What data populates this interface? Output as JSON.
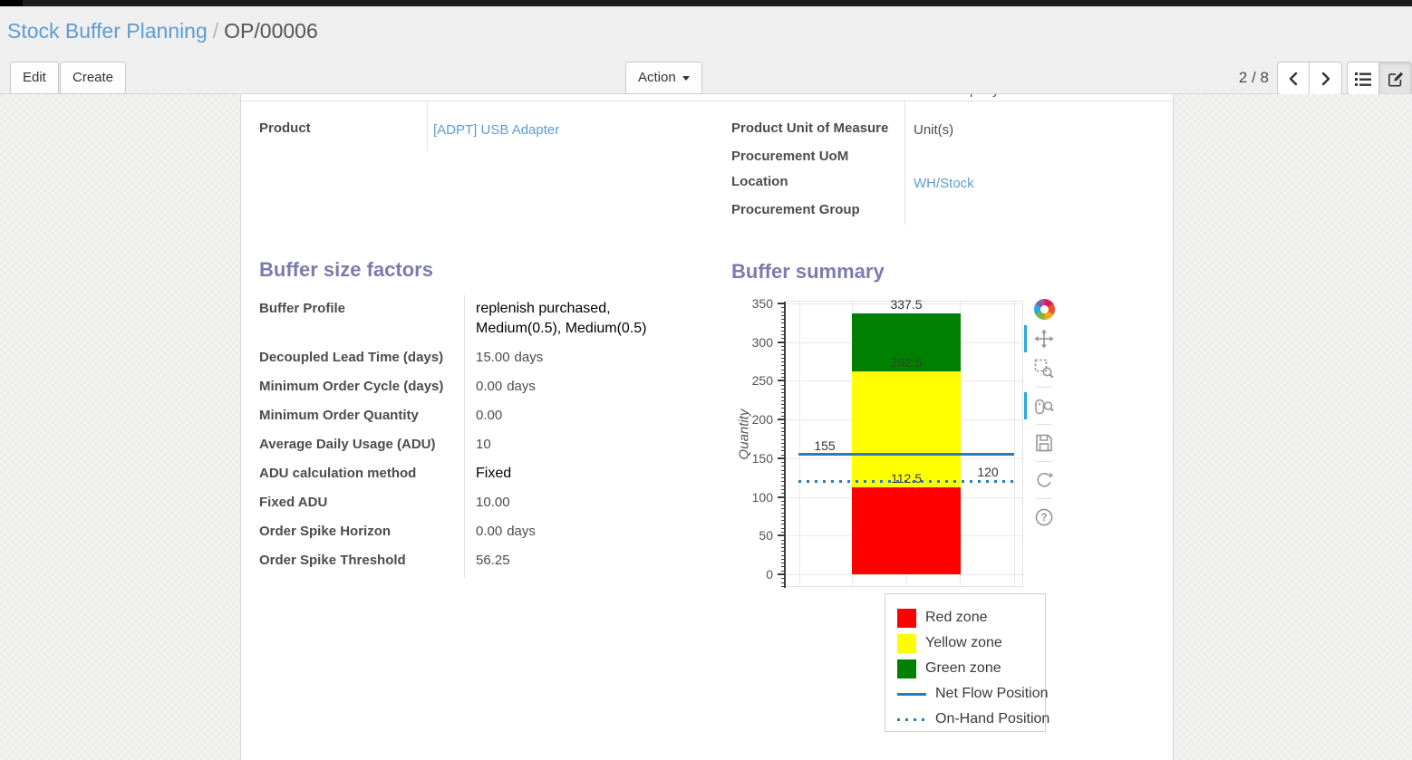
{
  "breadcrumb": {
    "parent": "Stock Buffer Planning",
    "separator": "/",
    "current": "OP/00006"
  },
  "toolbar": {
    "edit_label": "Edit",
    "create_label": "Create",
    "action_label": "Action",
    "pager": "2 / 8"
  },
  "form": {
    "clipped_previous_row_value": "YourCompany",
    "top_left_fields": [
      {
        "label": "Product",
        "value": "[ADPT] USB Adapter"
      }
    ],
    "top_right_fields": [
      {
        "label": "Product Unit of Measure",
        "value": "Unit(s)"
      },
      {
        "label": "Procurement UoM",
        "value": ""
      },
      {
        "label": "Location",
        "value": "WH/Stock"
      },
      {
        "label": "Procurement Group",
        "value": ""
      }
    ],
    "sections": {
      "factors": {
        "title": "Buffer size factors",
        "fields": [
          {
            "label": "Buffer Profile",
            "value": "replenish purchased, Medium(0.5), Medium(0.5)"
          },
          {
            "label": "Decoupled Lead Time (days)",
            "value": "15.00",
            "suffix": "days"
          },
          {
            "label": "Minimum Order Cycle (days)",
            "value": "0.00",
            "suffix": "days"
          },
          {
            "label": "Minimum Order Quantity",
            "value": "0.00"
          },
          {
            "label": "Average Daily Usage (ADU)",
            "value": "10"
          },
          {
            "label": "ADU calculation method",
            "value": "Fixed"
          },
          {
            "label": "Fixed ADU",
            "value": "10.00"
          },
          {
            "label": "Order Spike Horizon",
            "value": "0.00",
            "suffix": "days"
          },
          {
            "label": "Order Spike Threshold",
            "value": "56.25"
          }
        ]
      },
      "summary": {
        "title": "Buffer summary"
      }
    }
  },
  "chart_data": {
    "type": "bar",
    "title": "Buffer summary",
    "ylabel": "Quantity",
    "ylim": [
      0,
      350
    ],
    "yticks": [
      0,
      50,
      100,
      150,
      200,
      250,
      300,
      350
    ],
    "grid": true,
    "zones": [
      {
        "name": "Red zone",
        "from": 0,
        "to": 112.5,
        "color": "#ff0000"
      },
      {
        "name": "Yellow zone",
        "from": 112.5,
        "to": 262.5,
        "color": "#ffff00"
      },
      {
        "name": "Green zone",
        "from": 262.5,
        "to": 337.5,
        "color": "#008000"
      }
    ],
    "lines": [
      {
        "name": "Net Flow Position",
        "value": 155,
        "style": "solid",
        "color": "#2b7bb8"
      },
      {
        "name": "On-Hand Position",
        "value": 120,
        "style": "dotted",
        "color": "#2b7bb8"
      }
    ],
    "annotations": [
      {
        "text": "337.5",
        "value": 337.5,
        "pos": "bar",
        "color": "#333333"
      },
      {
        "text": "262.5",
        "value": 262.5,
        "pos": "bar",
        "color": "rgba(55,55,55,0.7)"
      },
      {
        "text": "112.5",
        "value": 112.5,
        "pos": "bar",
        "color": "#3c3c3c"
      },
      {
        "text": "155",
        "value": 155,
        "pos": "left",
        "color": "#333333"
      },
      {
        "text": "120",
        "value": 120,
        "pos": "right",
        "color": "#333333"
      }
    ],
    "legend_position": "below-right",
    "legend_items": [
      {
        "label": "Red zone",
        "swatch": "box",
        "color": "#ff0000"
      },
      {
        "label": "Yellow zone",
        "swatch": "box",
        "color": "#ffff00"
      },
      {
        "label": "Green zone",
        "swatch": "box",
        "color": "#008000"
      },
      {
        "label": "Net Flow Position",
        "swatch": "line",
        "color": "#2b7bb8"
      },
      {
        "label": "On-Hand Position",
        "swatch": "dots",
        "color": "#2b7bb8"
      }
    ],
    "toolbar_tools": [
      "pan",
      "box-zoom",
      "wheel-zoom",
      "save",
      "reset",
      "help"
    ],
    "active_tools": [
      "pan",
      "wheel-zoom"
    ]
  }
}
